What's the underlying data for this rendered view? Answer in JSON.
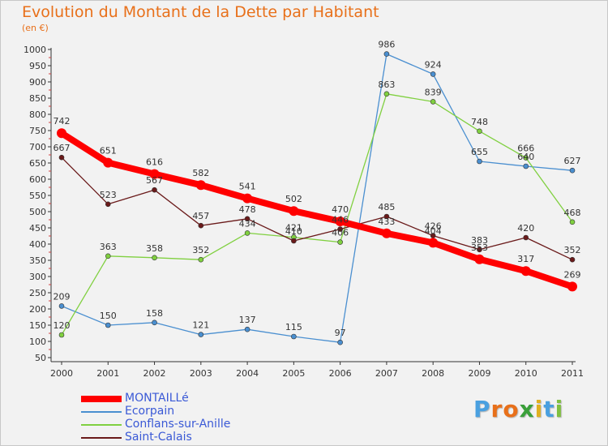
{
  "chart_data": {
    "type": "line",
    "title": "Evolution du Montant de la Dette par Habitant",
    "subtitle": "(en €)",
    "xlabel": "",
    "ylabel": "",
    "categories": [
      "2000",
      "2001",
      "2002",
      "2003",
      "2004",
      "2005",
      "2006",
      "2007",
      "2008",
      "2009",
      "2010",
      "2011"
    ],
    "ylim": [
      50,
      1000
    ],
    "yticks": [
      50,
      100,
      150,
      200,
      250,
      300,
      350,
      400,
      450,
      500,
      550,
      600,
      650,
      700,
      750,
      800,
      850,
      900,
      950,
      1000
    ],
    "grid": false,
    "legend_position": "bottom-left",
    "series": [
      {
        "name": "MONTAILLé",
        "color": "#ff0000",
        "values": [
          742,
          651,
          616,
          582,
          541,
          502,
          470,
          433,
          404,
          353,
          317,
          269
        ],
        "labels": [
          "742",
          "651",
          "616",
          "582",
          "541",
          "502",
          "470",
          "433",
          "404",
          "353",
          "317",
          "269"
        ]
      },
      {
        "name": "Ecorpain",
        "color": "#4a8fd0",
        "values": [
          209,
          150,
          158,
          121,
          137,
          115,
          97,
          986,
          924,
          655,
          640,
          627
        ],
        "labels": [
          "209",
          "150",
          "158",
          "121",
          "137",
          "115",
          "97",
          "986",
          "924",
          "655",
          "640",
          "627"
        ]
      },
      {
        "name": "Conflans-sur-Anille",
        "color": "#80d040",
        "values": [
          120,
          363,
          358,
          352,
          434,
          421,
          406,
          863,
          839,
          748,
          666,
          468
        ],
        "labels": [
          "120",
          "363",
          "358",
          "352",
          "434",
          "421",
          "406",
          "863",
          "839",
          "748",
          "666",
          "468"
        ]
      },
      {
        "name": "Saint-Calais",
        "color": "#6a1a1a",
        "values": [
          667,
          523,
          567,
          457,
          478,
          410,
          446,
          485,
          426,
          383,
          420,
          352
        ],
        "labels": [
          "667",
          "523",
          "567",
          "457",
          "478",
          "410",
          "446",
          "485",
          "426",
          "383",
          "420",
          "352"
        ]
      }
    ]
  },
  "logo": {
    "letters": [
      "P",
      "r",
      "o",
      "x",
      "i",
      "t",
      "i"
    ],
    "colors": [
      "#4aa0e0",
      "#e8701a",
      "#e8701a",
      "#3aa03a",
      "#e0b020",
      "#4aa0e0",
      "#80c040"
    ]
  }
}
